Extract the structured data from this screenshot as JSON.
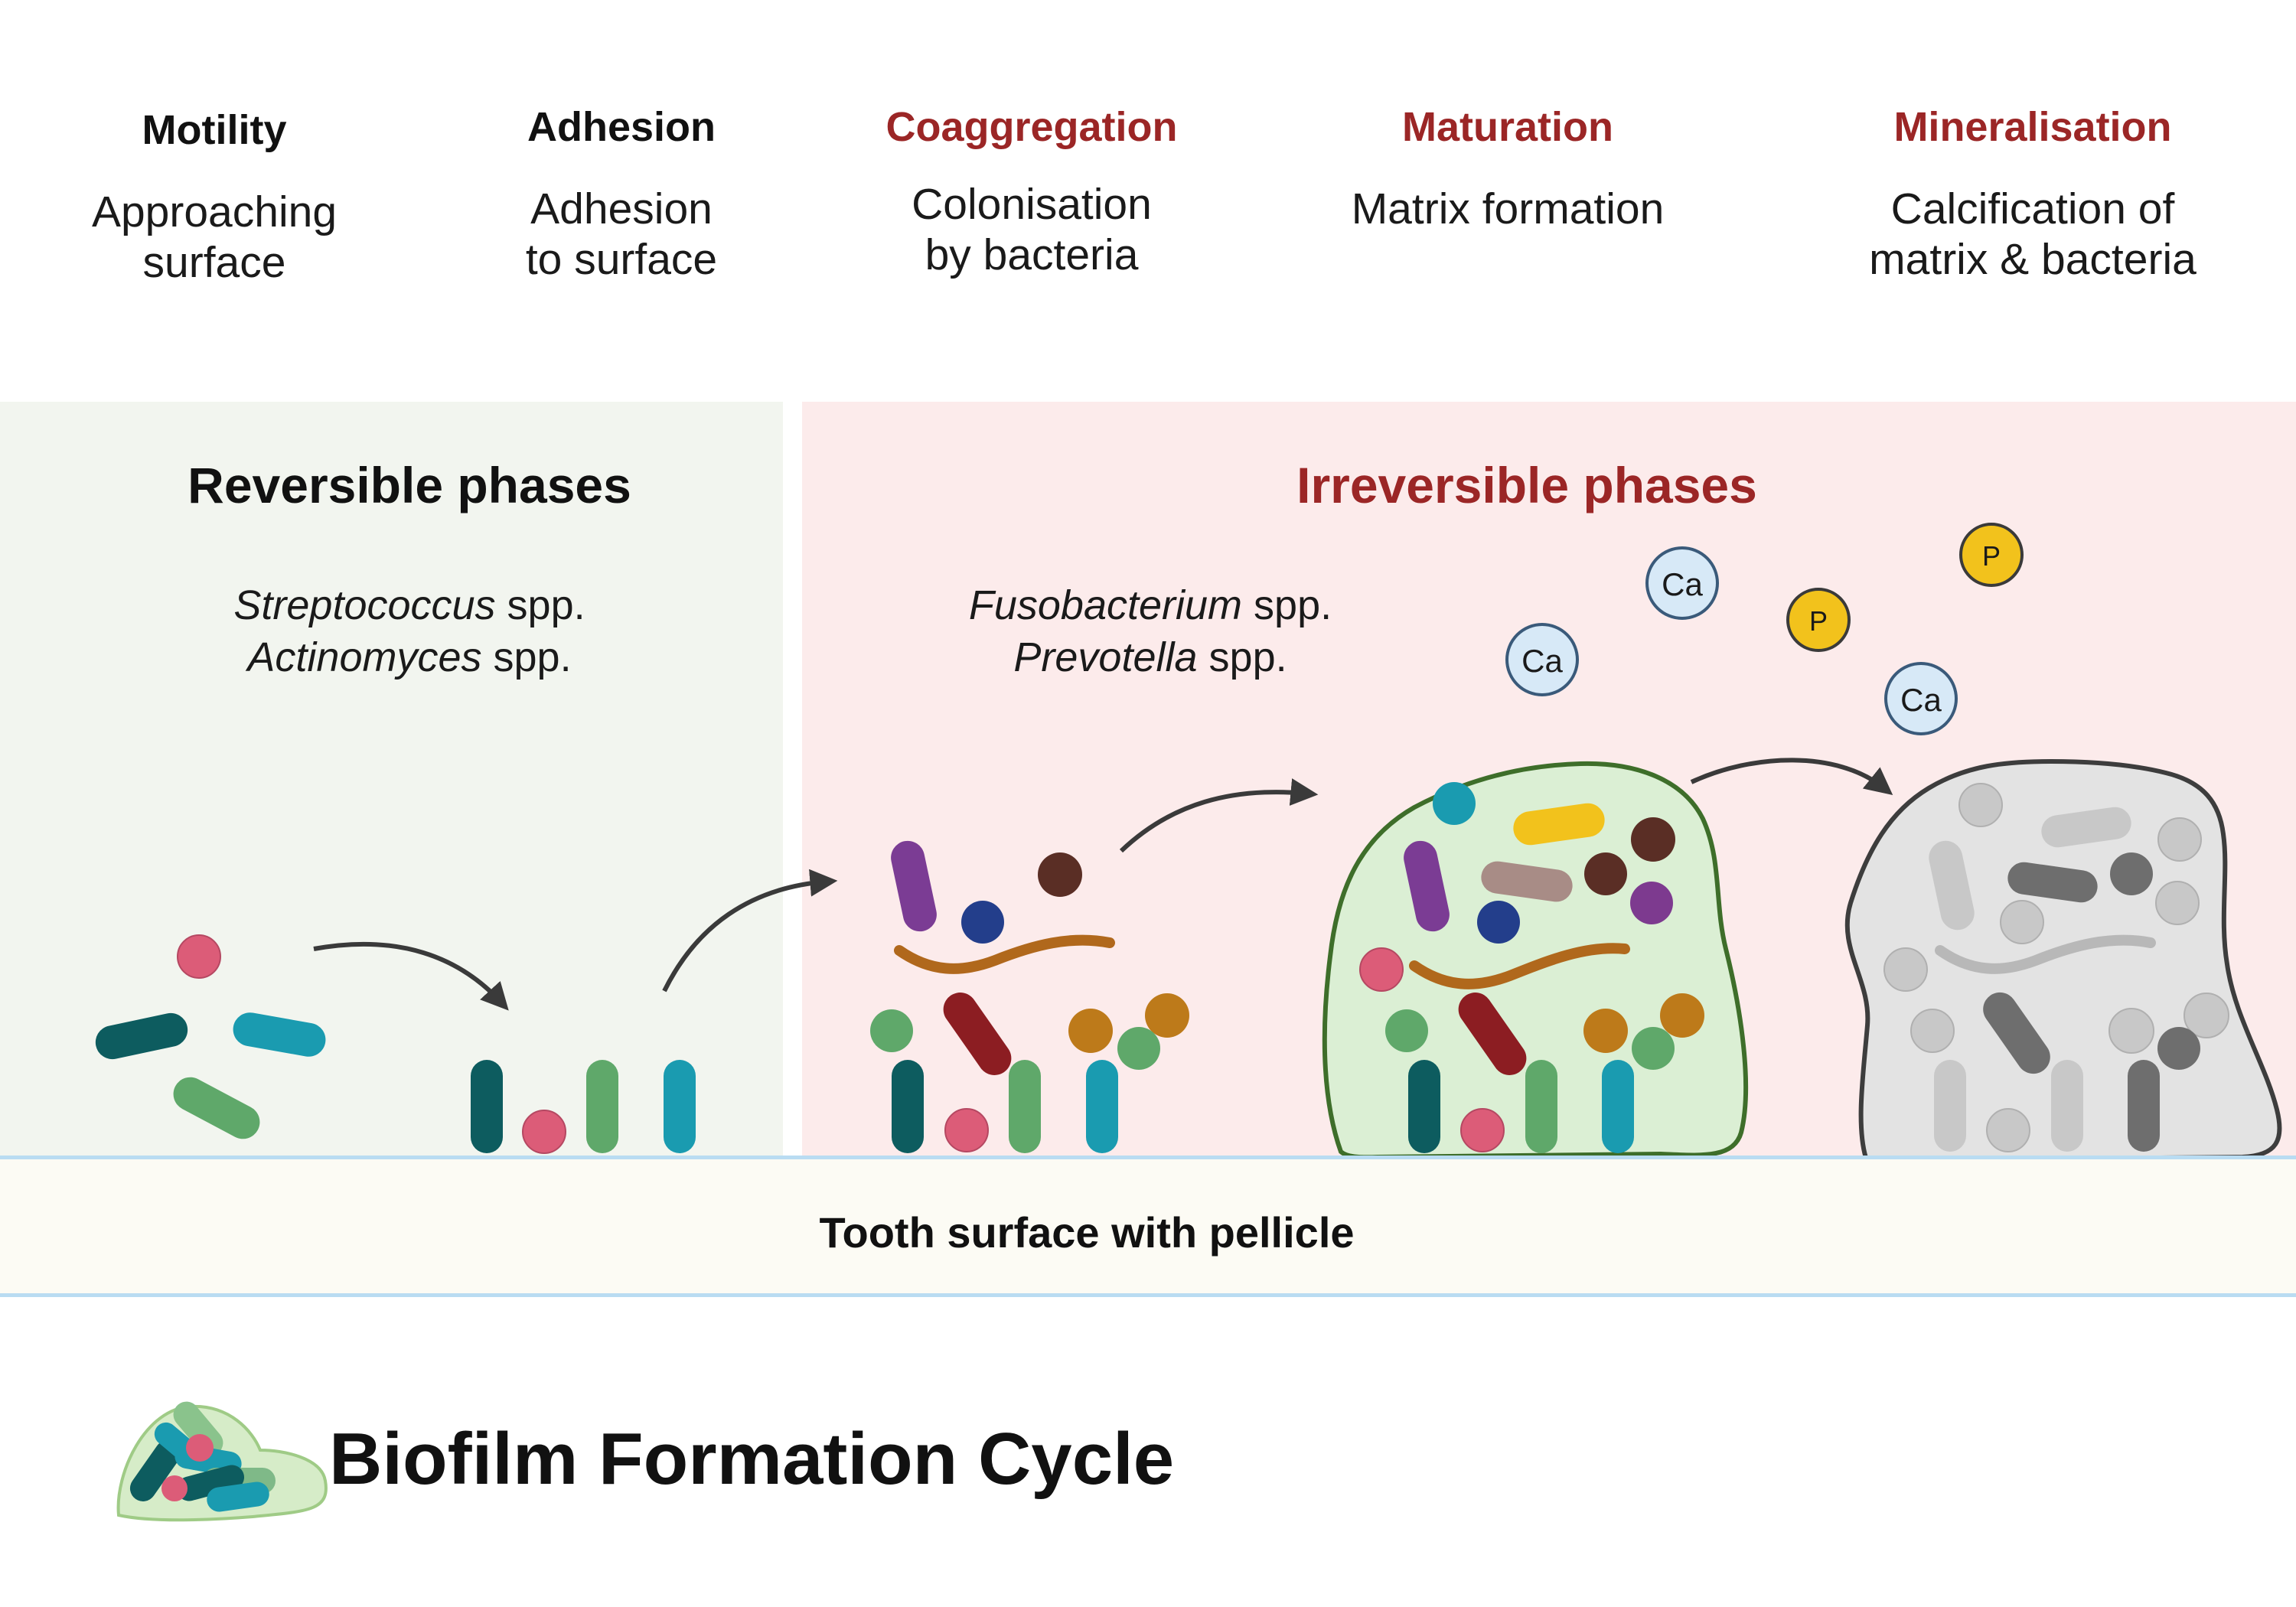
{
  "stages": [
    {
      "title": "Motility",
      "desc": [
        "Approaching",
        "surface"
      ],
      "tone": "dark"
    },
    {
      "title": "Adhesion",
      "desc": [
        "Adhesion",
        "to surface"
      ],
      "tone": "dark"
    },
    {
      "title": "Coaggregation",
      "desc": [
        "Colonisation",
        "by bacteria"
      ],
      "tone": "red"
    },
    {
      "title": "Maturation",
      "desc": [
        "Matrix formation",
        ""
      ],
      "tone": "red"
    },
    {
      "title": "Mineralisation",
      "desc": [
        "Calcification of",
        "matrix & bacteria"
      ],
      "tone": "red"
    }
  ],
  "phases": {
    "reversible": {
      "title": "Reversible phases",
      "species": [
        {
          "genus": "Streptococcus",
          "suffix": " spp."
        },
        {
          "genus": "Actinomyces",
          "suffix": " spp."
        }
      ]
    },
    "irreversible": {
      "title": "Irreversible phases",
      "species": [
        {
          "genus": "Fusobacterium",
          "suffix": " spp."
        },
        {
          "genus": "Prevotella",
          "suffix": " spp."
        }
      ]
    }
  },
  "ions": {
    "calcium": "Ca",
    "phosphate": "P"
  },
  "tooth_label": "Tooth surface with pellicle",
  "main_title": "Biofilm Formation Cycle",
  "colors": {
    "dark_teal": "#0d5c5f",
    "teal": "#1a9bb0",
    "green": "#5fa86a",
    "pink": "#dc5c78",
    "purple": "#7b3c94",
    "navy": "#233e8b",
    "brown": "#5a2e25",
    "orange_brown": "#bd7a1a",
    "fuso_brown": "#b0681c",
    "maroon": "#8c1d22",
    "yellow": "#f2c21c",
    "mauve": "#a88c86",
    "violet": "#7d3a8f",
    "matrix_fill": "#dbefd4",
    "matrix_stroke": "#3e6e2a",
    "mineral_fill": "#e3e3e3",
    "mineral_stroke": "#3d3d3d",
    "title_red": "#9b2626"
  }
}
